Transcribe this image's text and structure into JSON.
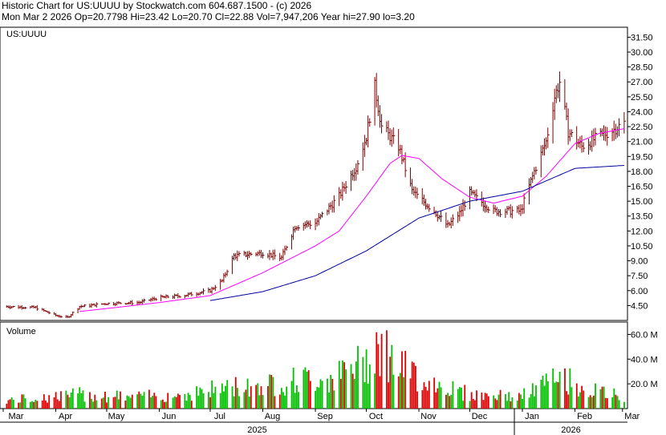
{
  "header": {
    "line1": "Historic Chart for US:UUUU by Stockwatch.com 604.687.1500 - (c) 2026",
    "line2": "Mon Mar  2 2026   Op=20.7798  Hi=23.42  Lo=20.70  Cl=22.88  Vol=7,947,206   Year hi=27.90  lo=3.20"
  },
  "chart_data": [
    {
      "type": "ohlc",
      "title": "US:UUUU",
      "x_ticks": [
        "Mar",
        "Apr",
        "May",
        "Jun",
        "Jul",
        "Aug",
        "Sep",
        "Oct",
        "Nov",
        "Dec",
        "Jan",
        "Feb",
        "Mar"
      ],
      "years": [
        "2025",
        "2026"
      ],
      "y_ticks": [
        "31.50",
        "30.00",
        "28.50",
        "27.00",
        "25.50",
        "24.00",
        "22.50",
        "21.00",
        "19.50",
        "18.00",
        "16.50",
        "15.00",
        "13.50",
        "12.00",
        "10.50",
        "9.00",
        "7.50",
        "6.00",
        "4.50"
      ],
      "ylim": [
        3.0,
        32.5
      ],
      "colors": {
        "bar": "#800000",
        "ma_short": "#ff00ff",
        "ma_long": "#0000a0"
      },
      "price_points": [
        {
          "date": "2025-03-03",
          "close": 4.4
        },
        {
          "date": "2025-03-20",
          "close": 4.3
        },
        {
          "date": "2025-04-01",
          "close": 3.5
        },
        {
          "date": "2025-04-08",
          "close": 3.3
        },
        {
          "date": "2025-04-15",
          "close": 4.4
        },
        {
          "date": "2025-05-01",
          "close": 4.7
        },
        {
          "date": "2025-05-20",
          "close": 4.8
        },
        {
          "date": "2025-06-01",
          "close": 5.3
        },
        {
          "date": "2025-06-15",
          "close": 5.5
        },
        {
          "date": "2025-07-01",
          "close": 6.0
        },
        {
          "date": "2025-07-08",
          "close": 7.0
        },
        {
          "date": "2025-07-15",
          "close": 9.5
        },
        {
          "date": "2025-08-01",
          "close": 9.8
        },
        {
          "date": "2025-08-12",
          "close": 9.3
        },
        {
          "date": "2025-08-20",
          "close": 12.5
        },
        {
          "date": "2025-09-01",
          "close": 12.8
        },
        {
          "date": "2025-09-15",
          "close": 15.5
        },
        {
          "date": "2025-09-25",
          "close": 18.5
        },
        {
          "date": "2025-10-01",
          "close": 21.5
        },
        {
          "date": "2025-10-06",
          "close": 26.5
        },
        {
          "date": "2025-10-10",
          "close": 22.5
        },
        {
          "date": "2025-10-20",
          "close": 20.5
        },
        {
          "date": "2025-10-28",
          "close": 16.0
        },
        {
          "date": "2025-11-10",
          "close": 14.0
        },
        {
          "date": "2025-11-18",
          "close": 12.5
        },
        {
          "date": "2025-11-25",
          "close": 13.8
        },
        {
          "date": "2025-12-01",
          "close": 15.8
        },
        {
          "date": "2025-12-15",
          "close": 14.0
        },
        {
          "date": "2025-12-31",
          "close": 14.0
        },
        {
          "date": "2026-01-08",
          "close": 18.0
        },
        {
          "date": "2026-01-15",
          "close": 21.0
        },
        {
          "date": "2026-01-20",
          "close": 25.5
        },
        {
          "date": "2026-01-23",
          "close": 27.0
        },
        {
          "date": "2026-01-28",
          "close": 22.0
        },
        {
          "date": "2026-02-05",
          "close": 20.5
        },
        {
          "date": "2026-02-15",
          "close": 21.5
        },
        {
          "date": "2026-02-22",
          "close": 22.0
        },
        {
          "date": "2026-03-02",
          "close": 22.88
        }
      ],
      "ma_short_points": [
        {
          "date": "2025-04-15",
          "value": 3.9
        },
        {
          "date": "2025-05-01",
          "value": 4.2
        },
        {
          "date": "2025-06-01",
          "value": 4.8
        },
        {
          "date": "2025-07-01",
          "value": 5.5
        },
        {
          "date": "2025-08-01",
          "value": 7.8
        },
        {
          "date": "2025-09-01",
          "value": 10.5
        },
        {
          "date": "2025-09-15",
          "value": 12.0
        },
        {
          "date": "2025-10-01",
          "value": 15.5
        },
        {
          "date": "2025-10-15",
          "value": 18.8
        },
        {
          "date": "2025-10-22",
          "value": 19.6
        },
        {
          "date": "2025-11-01",
          "value": 19.3
        },
        {
          "date": "2025-11-15",
          "value": 17.2
        },
        {
          "date": "2025-12-01",
          "value": 15.4
        },
        {
          "date": "2025-12-15",
          "value": 14.8
        },
        {
          "date": "2026-01-01",
          "value": 15.5
        },
        {
          "date": "2026-01-15",
          "value": 17.5
        },
        {
          "date": "2026-02-01",
          "value": 20.8
        },
        {
          "date": "2026-02-15",
          "value": 21.8
        },
        {
          "date": "2026-03-02",
          "value": 22.3
        }
      ],
      "ma_long_points": [
        {
          "date": "2025-07-01",
          "value": 5.0
        },
        {
          "date": "2025-08-01",
          "value": 5.9
        },
        {
          "date": "2025-09-01",
          "value": 7.5
        },
        {
          "date": "2025-10-01",
          "value": 10.0
        },
        {
          "date": "2025-11-01",
          "value": 13.3
        },
        {
          "date": "2025-12-01",
          "value": 15.0
        },
        {
          "date": "2026-01-01",
          "value": 16.0
        },
        {
          "date": "2026-02-01",
          "value": 18.3
        },
        {
          "date": "2026-03-02",
          "value": 18.6
        }
      ]
    },
    {
      "type": "bar",
      "title": "Volume",
      "y_ticks": [
        "60.0 M",
        "40.0 M",
        "20.0 M"
      ],
      "ylim": [
        0,
        70
      ],
      "colors": {
        "up": "#00c000",
        "down": "#e00000"
      },
      "volume_points": [
        {
          "date": "2025-03-03",
          "value": 7
        },
        {
          "date": "2025-04-15",
          "value": 12
        },
        {
          "date": "2025-05-15",
          "value": 10
        },
        {
          "date": "2025-06-15",
          "value": 12
        },
        {
          "date": "2025-07-10",
          "value": 18
        },
        {
          "date": "2025-08-01",
          "value": 20
        },
        {
          "date": "2025-08-20",
          "value": 24
        },
        {
          "date": "2025-09-15",
          "value": 28
        },
        {
          "date": "2025-10-01",
          "value": 40
        },
        {
          "date": "2025-10-06",
          "value": 60
        },
        {
          "date": "2025-10-20",
          "value": 35
        },
        {
          "date": "2025-11-10",
          "value": 22
        },
        {
          "date": "2025-12-01",
          "value": 12
        },
        {
          "date": "2025-12-31",
          "value": 10
        },
        {
          "date": "2026-01-15",
          "value": 22
        },
        {
          "date": "2026-01-25",
          "value": 26
        },
        {
          "date": "2026-02-10",
          "value": 15
        },
        {
          "date": "2026-03-02",
          "value": 10
        }
      ]
    }
  ]
}
